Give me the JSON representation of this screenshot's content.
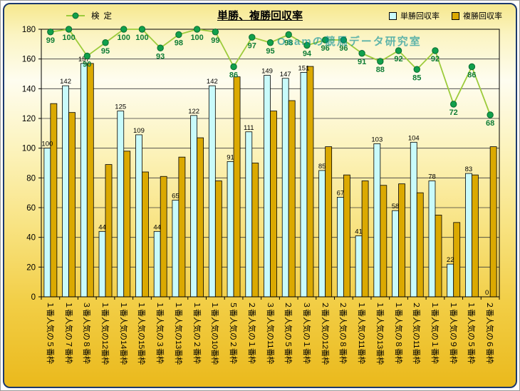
{
  "chart_data": {
    "type": "combo-bar-line",
    "title": "単勝、複勝回収率",
    "watermark": "Osamの競馬データ研究室",
    "categories": [
      "１番人気の５番枠",
      "１番人気の７番枠",
      "３番人気の８番枠",
      "１番人気の12番枠",
      "１番人気の14番枠",
      "１番人気の15番枠",
      "１番人気の３番枠",
      "１番人気の13番枠",
      "１番人気の２番枠",
      "１番人気の10番枠",
      "５番人気の２番枠",
      "２番人気の１番枠",
      "３番人気の11番枠",
      "２番人気の５番枠",
      "３番人気の１番枠",
      "２番人気の12番枠",
      "２番人気の８番枠",
      "１番人気の11番枠",
      "１番人気の13番枠",
      "１番人気の８番枠",
      "２番人気の11番枠",
      "１番人気の１番枠",
      "１番人気の９番枠",
      "１番人気の５番枠",
      "２番人気の６番枠"
    ],
    "series": [
      {
        "name": "単勝回収率",
        "type": "bar",
        "color": "#c9fbfb",
        "border": "#000000",
        "data_labels": true,
        "label_color": "#000000",
        "values": [
          100,
          142,
          157,
          44,
          125,
          109,
          44,
          65,
          122,
          142,
          91,
          111,
          149,
          147,
          151,
          85,
          67,
          41,
          103,
          58,
          104,
          78,
          22,
          83,
          0
        ]
      },
      {
        "name": "複勝回収率",
        "type": "bar",
        "color": "#dba901",
        "border": "#000000",
        "data_labels": false,
        "values": [
          130,
          124,
          157,
          89,
          98,
          84,
          81,
          94,
          107,
          78,
          148,
          90,
          125,
          132,
          155,
          101,
          82,
          78,
          75,
          76,
          70,
          55,
          50,
          82,
          101
        ]
      },
      {
        "name": "検定",
        "type": "line",
        "axis": "secondary",
        "line_color": "#9ccb3b",
        "marker_color": "#11a04b",
        "marker_border": "#0a6b30",
        "data_labels": true,
        "label_color": "#0e7c35",
        "values": [
          99,
          100,
          90,
          95,
          100,
          100,
          93,
          98,
          100,
          99,
          86,
          97,
          95,
          98,
          94,
          96,
          96,
          91,
          88,
          92,
          85,
          92,
          72,
          86,
          68
        ]
      }
    ],
    "y_axis": {
      "min": 0,
      "max": 180,
      "step": 20,
      "ticks": [
        0,
        20,
        40,
        60,
        80,
        100,
        120,
        140,
        160,
        180
      ]
    },
    "secondary_axis": {
      "min": 0,
      "max": 100,
      "visible": false
    },
    "grid": true,
    "legend_position": "top"
  }
}
